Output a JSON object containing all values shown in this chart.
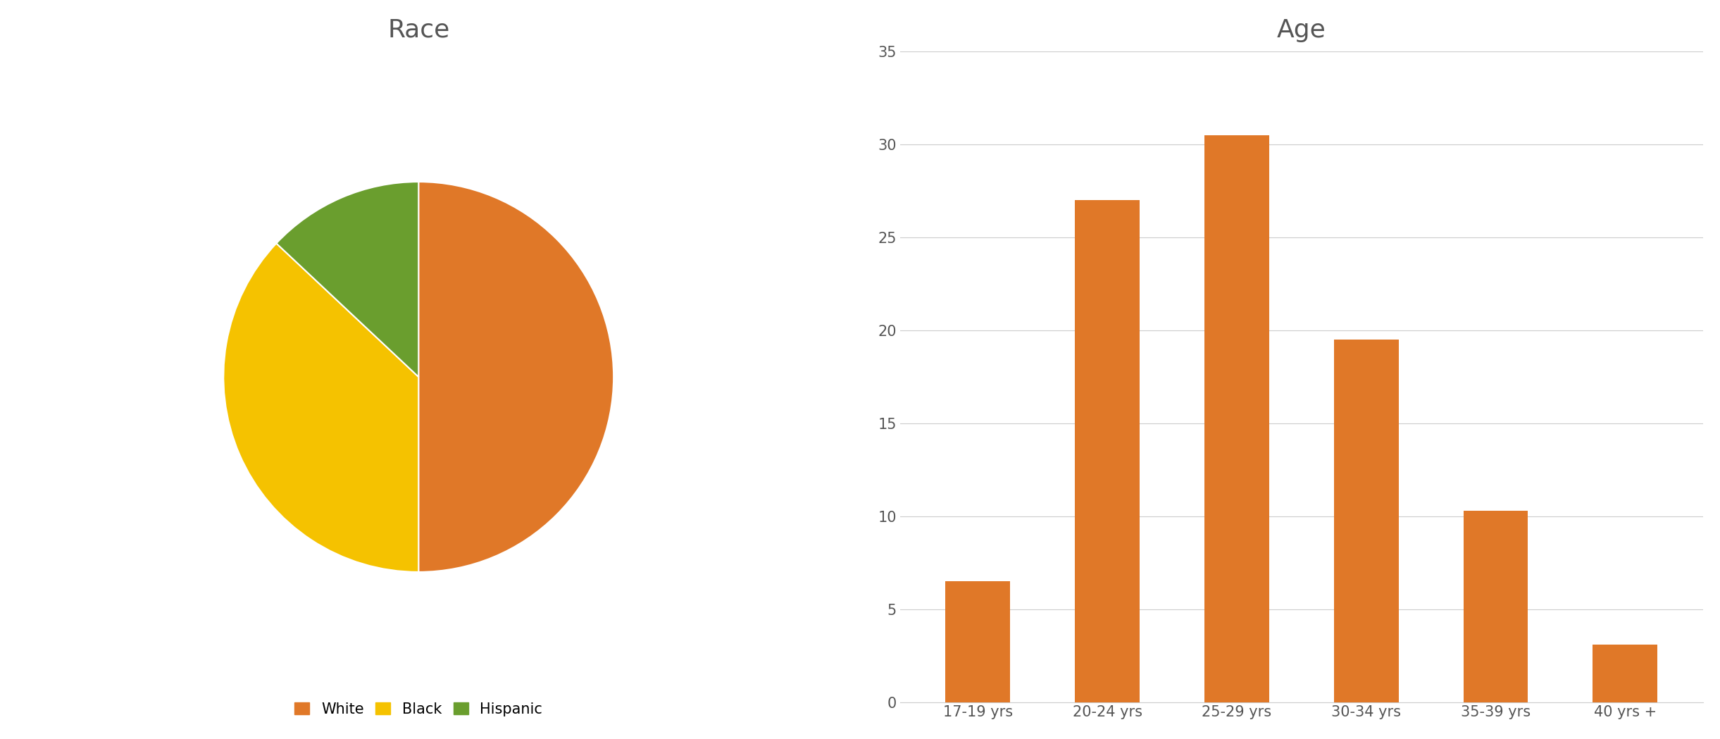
{
  "pie_title": "Race",
  "pie_labels": [
    "White",
    "Black",
    "Hispanic"
  ],
  "pie_sizes": [
    50,
    37,
    13
  ],
  "pie_colors": [
    "#E07828",
    "#F5C200",
    "#6A9E2E"
  ],
  "pie_startangle": 90,
  "bar_title": "Age",
  "bar_categories": [
    "17-19 yrs",
    "20-24 yrs",
    "25-29 yrs",
    "30-34 yrs",
    "35-39 yrs",
    "40 yrs +"
  ],
  "bar_values": [
    6.5,
    27.0,
    30.5,
    19.5,
    10.3,
    3.1
  ],
  "bar_color": "#E07828",
  "bar_legend_label": "Age",
  "bar_ylim": [
    0,
    35
  ],
  "bar_yticks": [
    0,
    5,
    10,
    15,
    20,
    25,
    30,
    35
  ],
  "title_fontsize": 26,
  "label_fontsize": 15,
  "tick_fontsize": 15,
  "legend_fontsize": 15,
  "title_color": "#555555",
  "tick_color": "#555555",
  "background_color": "#ffffff",
  "grid_color": "#cccccc"
}
